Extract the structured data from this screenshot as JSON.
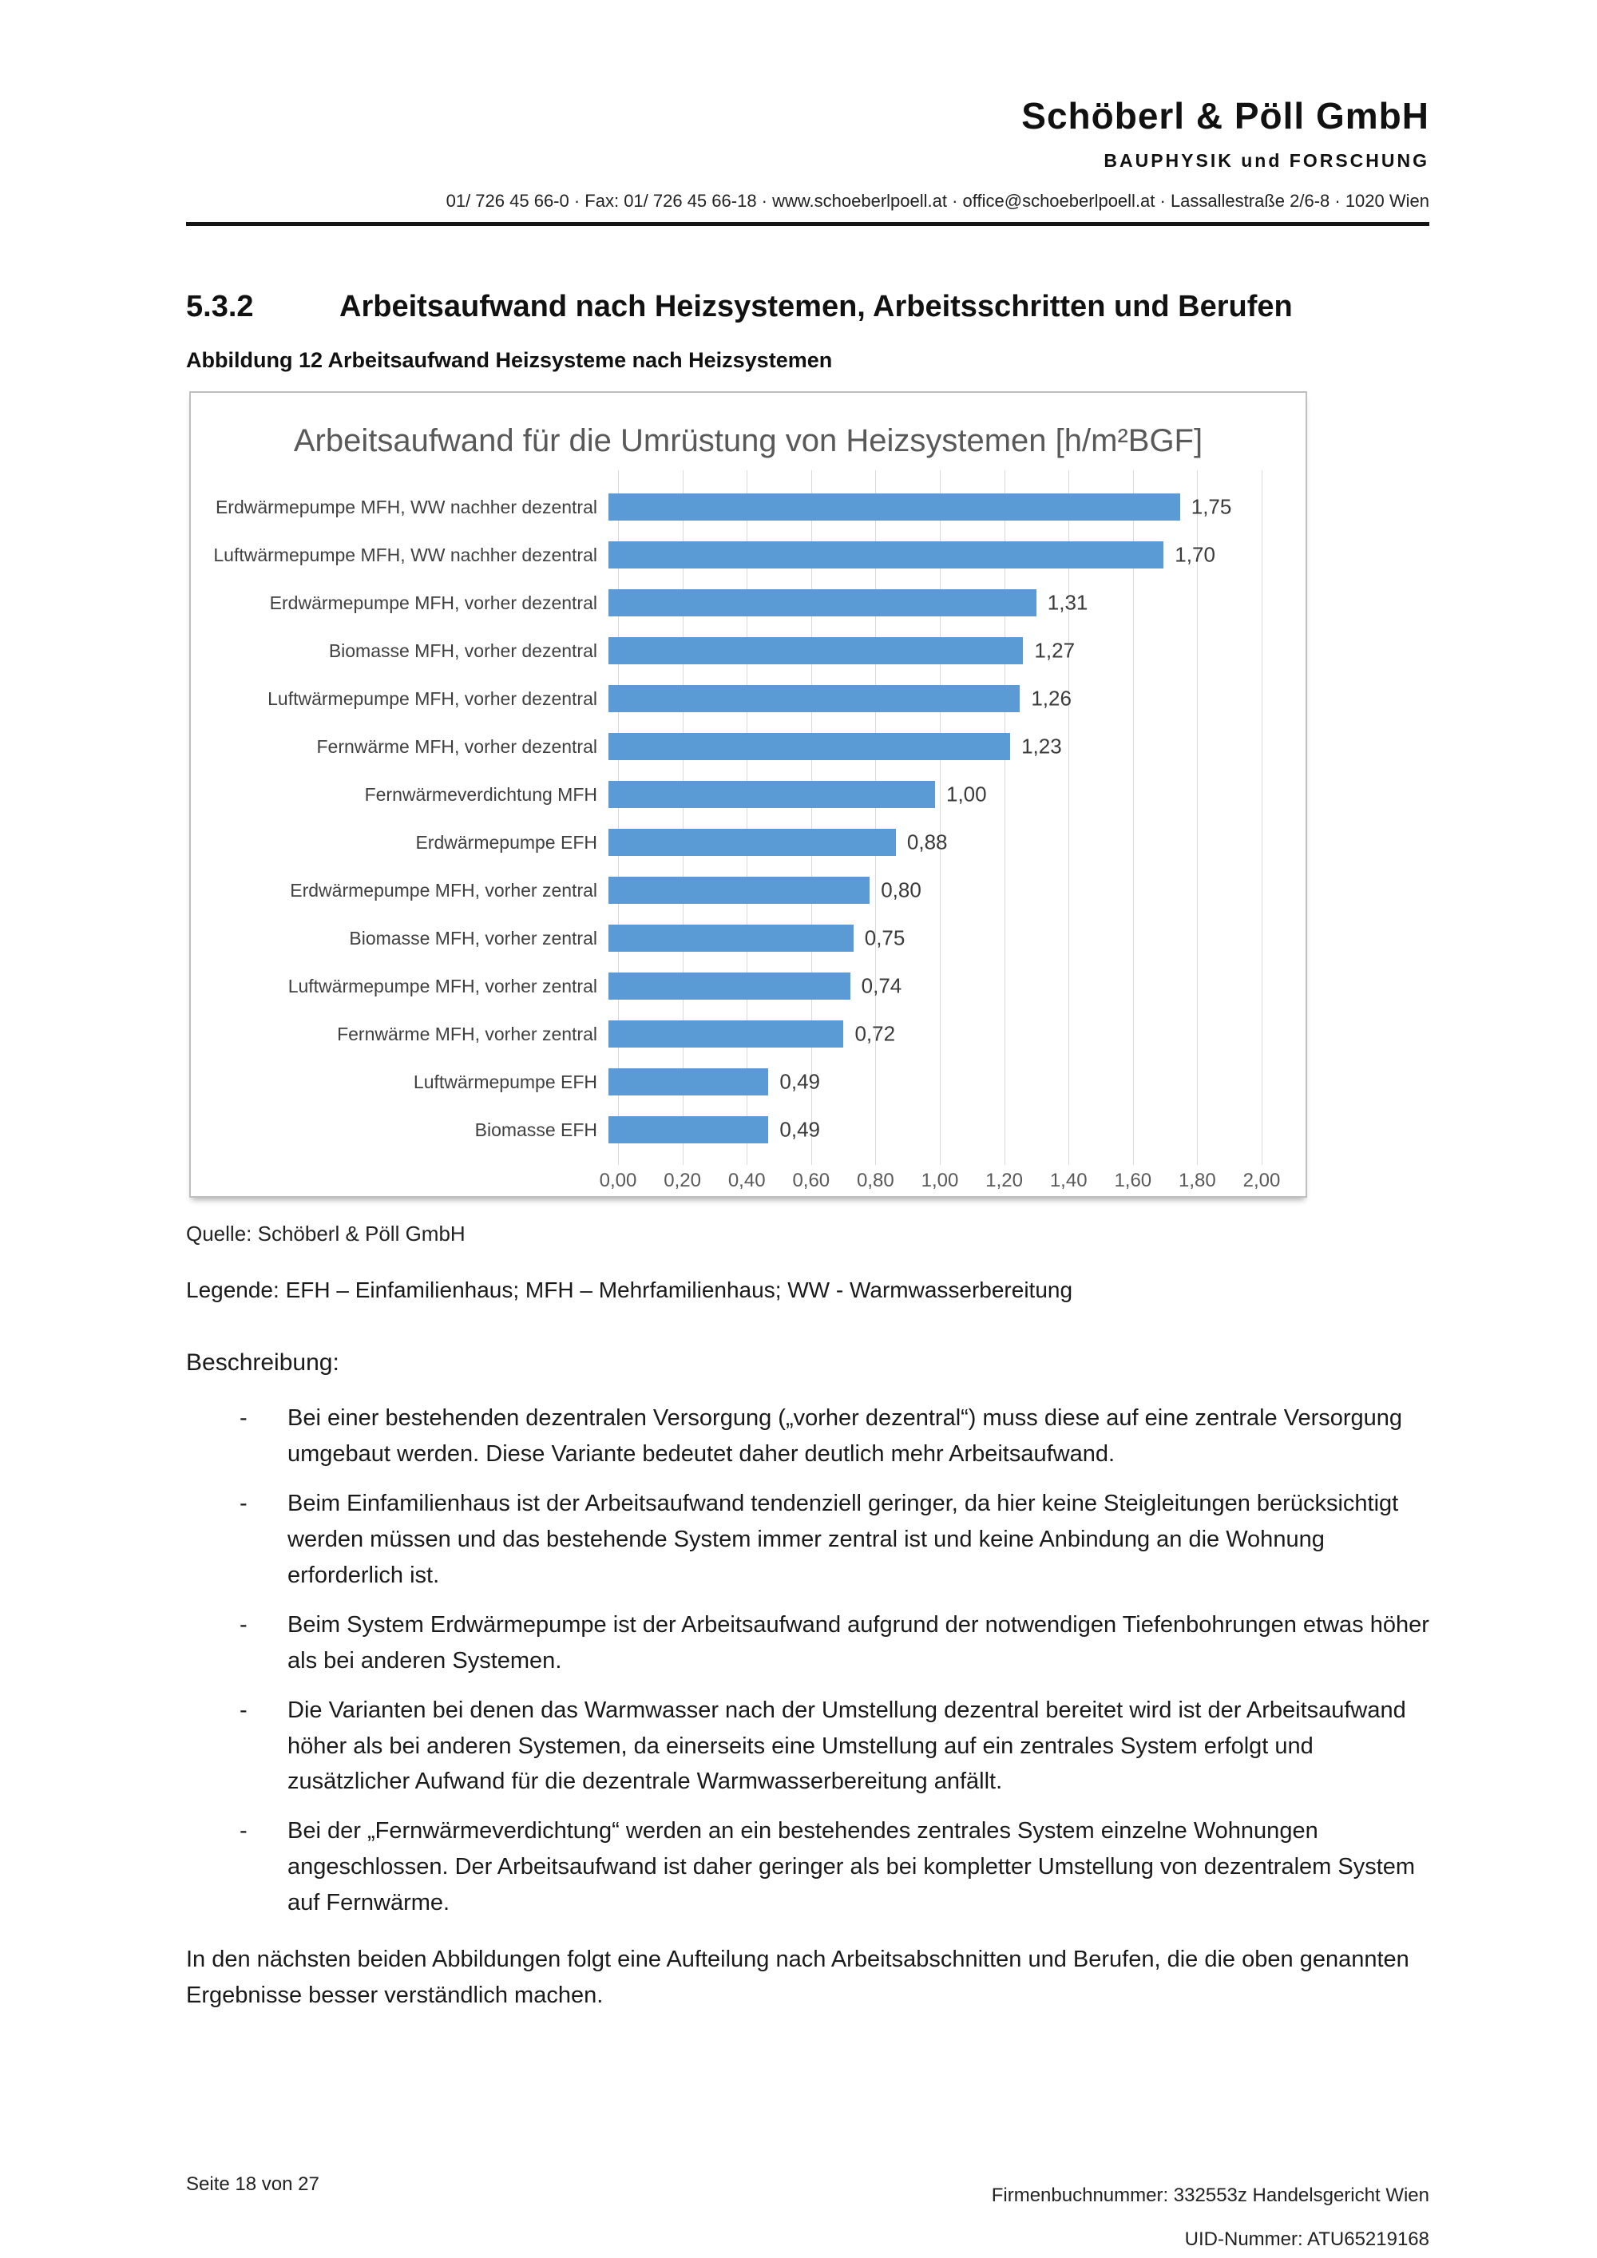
{
  "header": {
    "company": "Schöberl & Pöll GmbH",
    "division": "BAUPHYSIK und FORSCHUNG",
    "contact_line": "01/ 726 45 66-0 · Fax: 01/ 726 45 66-18 · www.schoeberlpoell.at · office@schoeberlpoell.at · Lassallestraße 2/6-8 · 1020 Wien"
  },
  "section": {
    "number": "5.3.2",
    "title": "Arbeitsaufwand nach Heizsystemen, Arbeitsschritten und Berufen"
  },
  "figure": {
    "caption": "Abbildung 12 Arbeitsaufwand Heizsysteme nach Heizsystemen",
    "source": "Quelle: Schöberl & Pöll GmbH",
    "legend": "Legende: EFH – Einfamilienhaus; MFH – Mehrfamilienhaus; WW - Warmwasserbereitung"
  },
  "chart_data": {
    "type": "bar",
    "orientation": "horizontal",
    "title": "Arbeitsaufwand für die Umrüstung von Heizsystemen [h/m²BGF]",
    "categories": [
      "Erdwärmepumpe MFH, WW nachher dezentral",
      "Luftwärmepumpe MFH, WW nachher dezentral",
      "Erdwärmepumpe MFH, vorher dezentral",
      "Biomasse MFH, vorher dezentral",
      "Luftwärmepumpe MFH, vorher dezentral",
      "Fernwärme MFH, vorher dezentral",
      "Fernwärmeverdichtung MFH",
      "Erdwärmepumpe EFH",
      "Erdwärmepumpe MFH, vorher zentral",
      "Biomasse MFH, vorher zentral",
      "Luftwärmepumpe MFH, vorher zentral",
      "Fernwärme MFH, vorher zentral",
      "Luftwärmepumpe EFH",
      "Biomasse EFH"
    ],
    "values": [
      1.75,
      1.7,
      1.31,
      1.27,
      1.26,
      1.23,
      1.0,
      0.88,
      0.8,
      0.75,
      0.74,
      0.72,
      0.49,
      0.49
    ],
    "value_labels": [
      "1,75",
      "1,70",
      "1,31",
      "1,27",
      "1,26",
      "1,23",
      "1,00",
      "0,88",
      "0,80",
      "0,75",
      "0,74",
      "0,72",
      "0,49",
      "0,49"
    ],
    "xlim": [
      0,
      2.0
    ],
    "x_ticks": [
      "0,00",
      "0,20",
      "0,40",
      "0,60",
      "0,80",
      "1,00",
      "1,20",
      "1,40",
      "1,60",
      "1,80",
      "2,00"
    ],
    "bar_color": "#5b9bd5",
    "gridline_color": "#d9d9d9",
    "grid": "vertical-only",
    "legend_position": "none",
    "xlabel": "",
    "ylabel": ""
  },
  "description": {
    "heading": "Beschreibung:",
    "bullets": [
      "Bei einer bestehenden dezentralen Versorgung („vorher dezentral“) muss diese auf eine zentrale Versorgung umgebaut werden. Diese Variante bedeutet daher deutlich mehr Arbeitsaufwand.",
      "Beim Einfamilienhaus ist der Arbeitsaufwand tendenziell geringer, da hier keine Steigleitungen berücksichtigt werden müssen und das bestehende System immer zentral ist und keine Anbindung an die Wohnung erforderlich ist.",
      "Beim System Erdwärmepumpe ist der Arbeitsaufwand aufgrund der notwendigen Tiefenbohrungen etwas höher als bei anderen Systemen.",
      "Die Varianten bei denen das Warmwasser nach der Umstellung dezentral bereitet wird ist der Arbeitsaufwand höher als bei anderen Systemen, da einerseits eine Umstellung auf ein zentrales System erfolgt und zusätzlicher Aufwand für die dezentrale Warmwasserbereitung anfällt.",
      "Bei der „Fernwärmeverdichtung“ werden an ein bestehendes zentrales System einzelne Wohnungen angeschlossen. Der Arbeitsaufwand ist daher geringer als bei kompletter Umstellung von dezentralem System auf Fernwärme."
    ],
    "closing": "In den nächsten beiden Abbildungen folgt eine Aufteilung nach Arbeitsabschnitten und Berufen, die die oben genannten Ergebnisse besser verständlich machen."
  },
  "footer": {
    "page": "Seite 18 von 27",
    "company_register": "Firmenbuchnummer: 332553z Handelsgericht Wien",
    "uid": "UID-Nummer: ATU65219168"
  }
}
